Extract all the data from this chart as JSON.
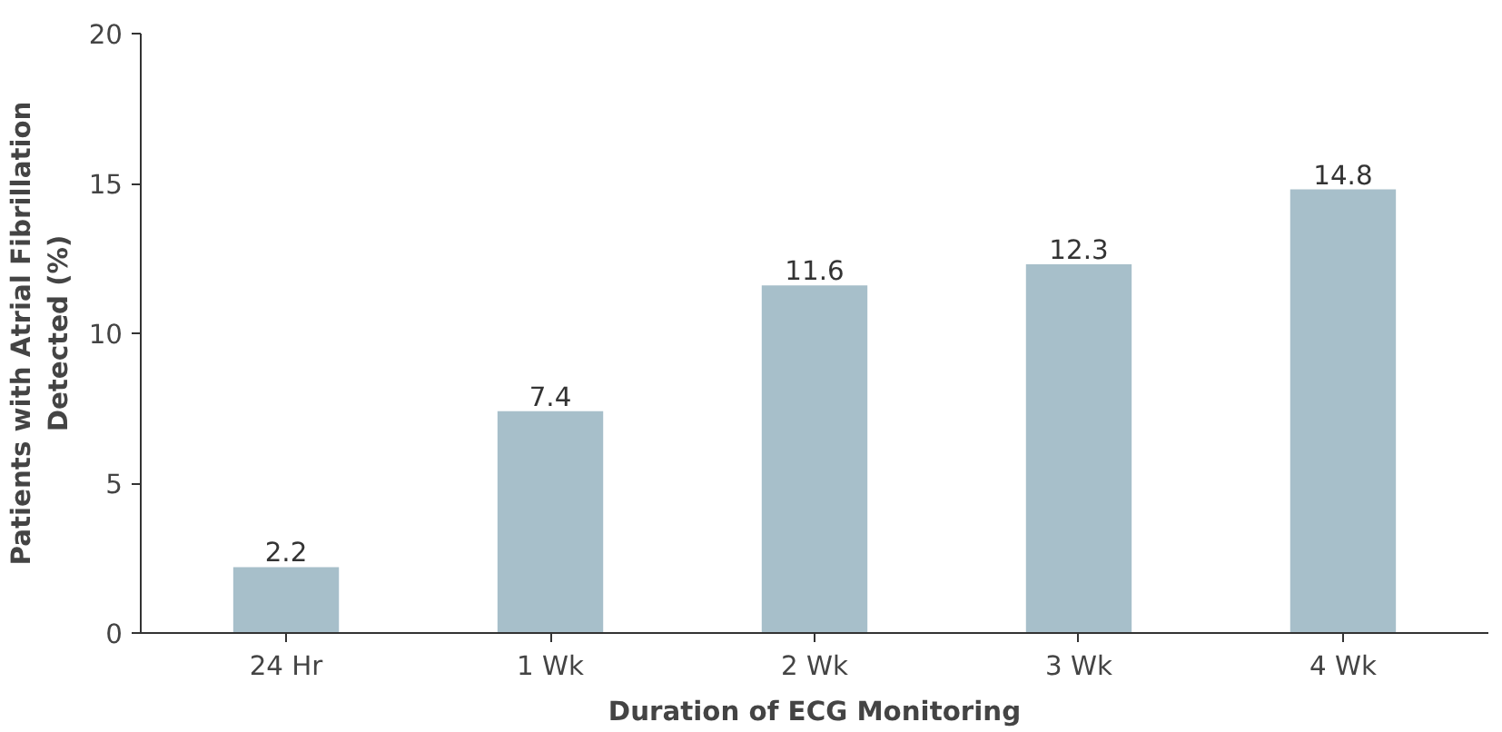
{
  "chart_data": {
    "type": "bar",
    "xlabel": "Duration of ECG Monitoring",
    "ylabel": "Patients with Atrial Fibrillation\nDetected (%)",
    "categories": [
      "24 Hr",
      "1 Wk",
      "2 Wk",
      "3 Wk",
      "4 Wk"
    ],
    "values": [
      2.2,
      7.4,
      11.6,
      12.3,
      14.8
    ],
    "color": "#a7bfca",
    "ylim": [
      0,
      20
    ],
    "yticks": [
      0,
      5,
      10,
      15,
      20
    ],
    "data_labels": true,
    "grid": false
  }
}
